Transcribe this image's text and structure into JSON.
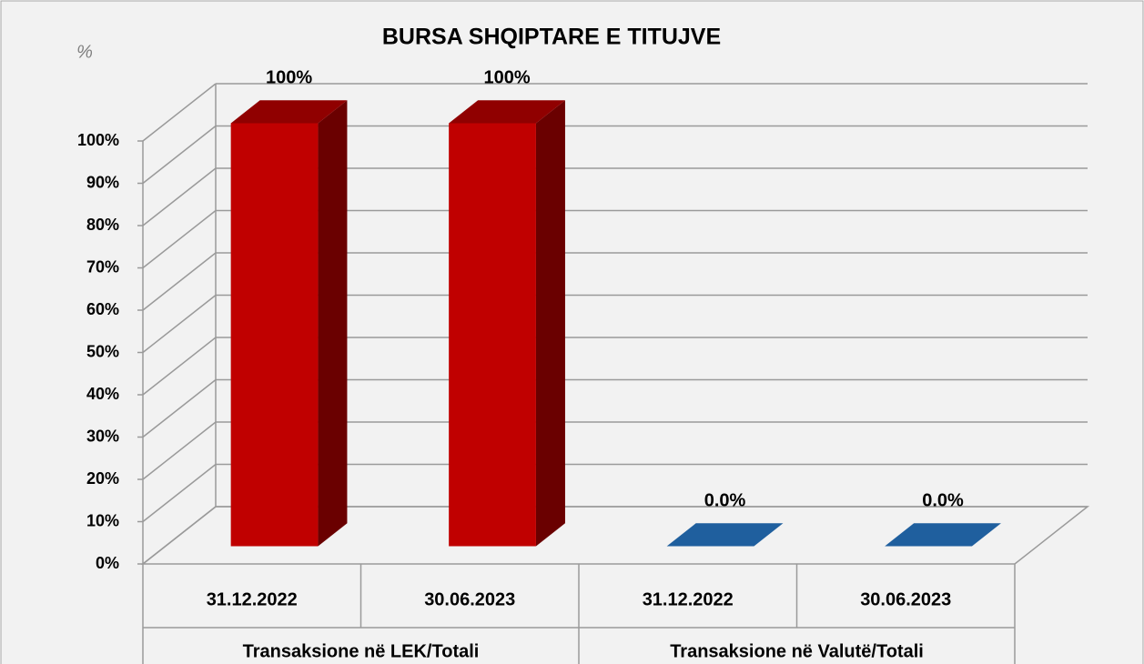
{
  "chart_data": {
    "type": "bar3d",
    "title": "BURSA SHQIPTARE E TITUJVE",
    "y_unit": "%",
    "categories": [
      "31.12.2022",
      "30.06.2023",
      "31.12.2022",
      "30.06.2023"
    ],
    "groups": [
      "Transaksione në LEK/Totali",
      "Transaksione në Valutë/Totali"
    ],
    "values": [
      100,
      100,
      0,
      0
    ],
    "value_labels": [
      "100%",
      "100%",
      "0.0%",
      "0.0%"
    ],
    "colors": [
      "#c00000",
      "#c00000",
      "#1f5f9e",
      "#1f5f9e"
    ],
    "ylim": [
      0,
      100
    ],
    "yticks": [
      {
        "value": 0,
        "label": "0%"
      },
      {
        "value": 10,
        "label": "10%"
      },
      {
        "value": 20,
        "label": "20%"
      },
      {
        "value": 30,
        "label": "30%"
      },
      {
        "value": 40,
        "label": "40%"
      },
      {
        "value": 50,
        "label": "50%"
      },
      {
        "value": 60,
        "label": "60%"
      },
      {
        "value": 70,
        "label": "70%"
      },
      {
        "value": 80,
        "label": "80%"
      },
      {
        "value": 90,
        "label": "90%"
      },
      {
        "value": 100,
        "label": "100%"
      }
    ],
    "grid": true
  }
}
